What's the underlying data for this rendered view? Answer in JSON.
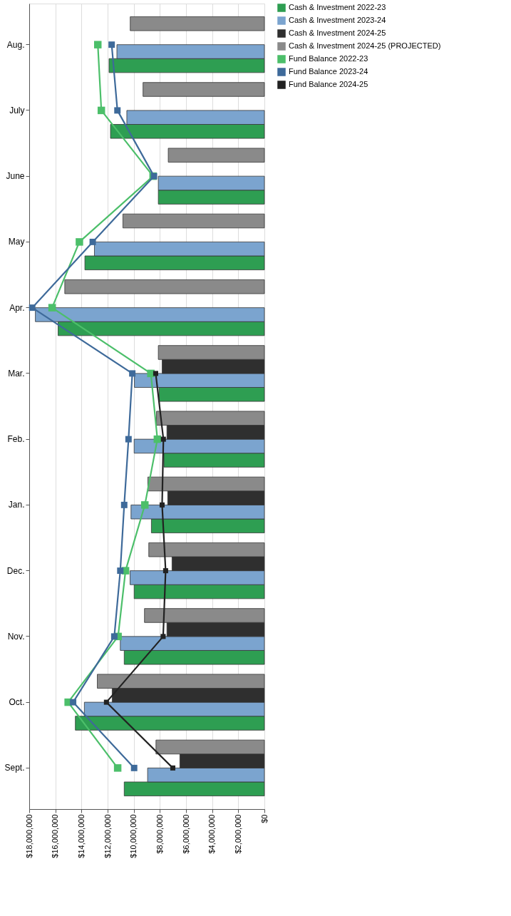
{
  "chart_data": {
    "type": "bar",
    "orientation": "horizontal",
    "categories": [
      "Aug.",
      "July",
      "June",
      "May",
      "Apr.",
      "Mar.",
      "Feb.",
      "Jan.",
      "Dec.",
      "Nov.",
      "Oct.",
      "Sept."
    ],
    "xlim": [
      18000000,
      0
    ],
    "xticks": [
      {
        "value": 18000000,
        "label": "$18,000,000"
      },
      {
        "value": 16000000,
        "label": "$16,000,000"
      },
      {
        "value": 14000000,
        "label": "$14,000,000"
      },
      {
        "value": 12000000,
        "label": "$12,000,000"
      },
      {
        "value": 10000000,
        "label": "$10,000,000"
      },
      {
        "value": 8000000,
        "label": "$8,000,000"
      },
      {
        "value": 6000000,
        "label": "$6,000,000"
      },
      {
        "value": 4000000,
        "label": "$4,000,000"
      },
      {
        "value": 2000000,
        "label": "$2,000,000"
      },
      {
        "value": 0,
        "label": "$0"
      }
    ],
    "grid": "x",
    "legend": "right",
    "marker": "square",
    "line_style": "solid",
    "series": [
      {
        "name": "Cash & Investment 2022-23",
        "color": "#2e9e52",
        "values": [
          11890000,
          11780000,
          8120000,
          13740000,
          15790000,
          8060000,
          7690000,
          8650000,
          9970000,
          10730000,
          14470000,
          10730000
        ]
      },
      {
        "name": "Cash & Investment 2023-24",
        "color": "#7ba4cf",
        "values": [
          11290000,
          10530000,
          8120000,
          13010000,
          17530000,
          9950000,
          9970000,
          10210000,
          10280000,
          11030000,
          13780000,
          8940000
        ]
      },
      {
        "name": "Cash & Investment 2024-25",
        "color": "#2f2f2f",
        "values": [
          null,
          null,
          null,
          null,
          null,
          7830000,
          7460000,
          7400000,
          7070000,
          7460000,
          11650000,
          6470000
        ]
      },
      {
        "name": "Cash & Investment 2024-25 (PROJECTED)",
        "color": "#8a8a8a",
        "values": [
          10270000,
          9290000,
          7360000,
          10830000,
          15280000,
          8120000,
          8260000,
          8920000,
          8850000,
          9180000,
          12790000,
          8300000
        ]
      },
      {
        "name": "Fund Balance 2022-23",
        "color": "#4cbf6a",
        "type": "line",
        "values": [
          12750000,
          12480000,
          8520000,
          14160000,
          16250000,
          8690000,
          8190000,
          9150000,
          10630000,
          11200000,
          15020000,
          11230000
        ]
      },
      {
        "name": "Fund Balance 2023-24",
        "color": "#3e6a9a",
        "type": "line",
        "values": [
          11690000,
          11250000,
          8450000,
          13140000,
          17770000,
          10110000,
          10400000,
          10730000,
          11030000,
          11490000,
          14640000,
          9970000
        ]
      },
      {
        "name": "Fund Balance 2024-25",
        "color": "#222222",
        "type": "line",
        "values": [
          null,
          null,
          null,
          null,
          null,
          8320000,
          7730000,
          7830000,
          7560000,
          7750000,
          12090000,
          7010000
        ]
      }
    ]
  }
}
